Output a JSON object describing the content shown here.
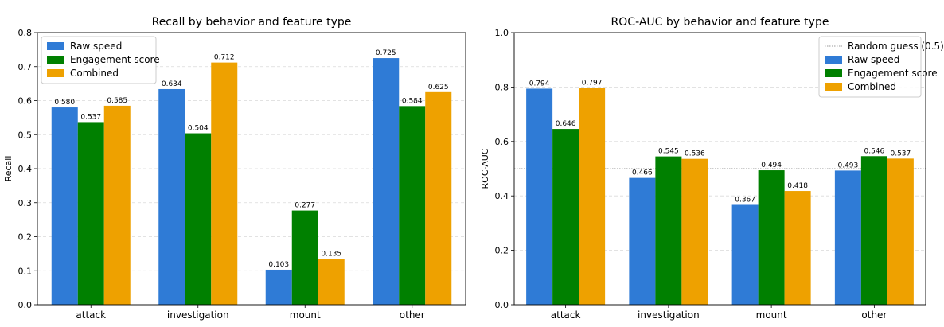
{
  "chart_data": [
    {
      "type": "bar",
      "title": "Recall by behavior and feature type",
      "xlabel": "",
      "ylabel": "Recall",
      "ylim": [
        0,
        0.8
      ],
      "yticks": [
        "0.0",
        "0.1",
        "0.2",
        "0.3",
        "0.4",
        "0.5",
        "0.6",
        "0.7",
        "0.8"
      ],
      "grid": "y-dashed",
      "legend_position": "top-left",
      "categories": [
        "attack",
        "investigation",
        "mount",
        "other"
      ],
      "series": [
        {
          "name": "Raw speed",
          "color": "#2f7bd6",
          "values": [
            0.58,
            0.634,
            0.103,
            0.725
          ],
          "labels": [
            "0.580",
            "0.634",
            "0.103",
            "0.725"
          ]
        },
        {
          "name": "Engagement score",
          "color": "#008000",
          "values": [
            0.537,
            0.504,
            0.277,
            0.584
          ],
          "labels": [
            "0.537",
            "0.504",
            "0.277",
            "0.584"
          ]
        },
        {
          "name": "Combined",
          "color": "#eea100",
          "values": [
            0.585,
            0.712,
            0.135,
            0.625
          ],
          "labels": [
            "0.585",
            "0.712",
            "0.135",
            "0.625"
          ]
        }
      ]
    },
    {
      "type": "bar",
      "title": "ROC-AUC by behavior and feature type",
      "xlabel": "",
      "ylabel": "ROC-AUC",
      "ylim": [
        0,
        1.0
      ],
      "yticks": [
        "0.0",
        "0.2",
        "0.4",
        "0.6",
        "0.8",
        "1.0"
      ],
      "grid": "y-dashed",
      "legend_position": "top-right",
      "reference_line": {
        "name": "Random guess (0.5)",
        "value": 0.5,
        "color": "#999999"
      },
      "categories": [
        "attack",
        "investigation",
        "mount",
        "other"
      ],
      "series": [
        {
          "name": "Raw speed",
          "color": "#2f7bd6",
          "values": [
            0.794,
            0.466,
            0.367,
            0.493
          ],
          "labels": [
            "0.794",
            "0.466",
            "0.367",
            "0.493"
          ]
        },
        {
          "name": "Engagement score",
          "color": "#008000",
          "values": [
            0.646,
            0.545,
            0.494,
            0.546
          ],
          "labels": [
            "0.646",
            "0.545",
            "0.494",
            "0.546"
          ]
        },
        {
          "name": "Combined",
          "color": "#eea100",
          "values": [
            0.797,
            0.536,
            0.418,
            0.537
          ],
          "labels": [
            "0.797",
            "0.536",
            "0.418",
            "0.537"
          ]
        }
      ]
    }
  ]
}
